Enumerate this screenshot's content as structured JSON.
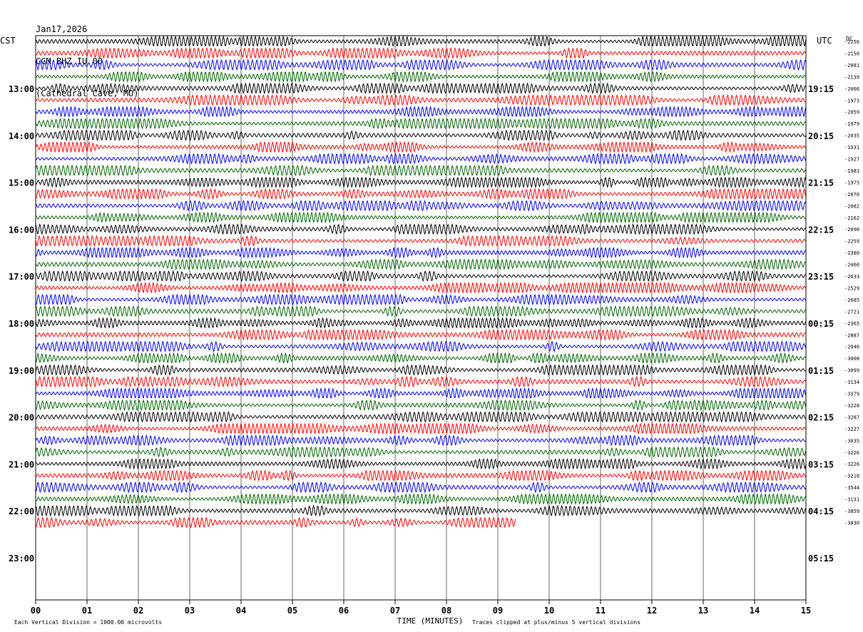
{
  "header": {
    "date": "Jan17,2026",
    "station": "CCM BHZ IU 00",
    "location": "(Cathedral Cave, MO)"
  },
  "left_tz": "CST",
  "right_tz": "UTC",
  "dc_label": "DC",
  "footer": {
    "scale_note": "Each Vertical Division = 1000.00 microvolts",
    "clip_note": "Traces clipped at plus/minus 5 vertical divisions"
  },
  "colors": {
    "trace_cycle": [
      "#000000",
      "#ff0000",
      "#0000ff",
      "#006400"
    ],
    "grid": "#000000"
  },
  "chart_data": {
    "type": "line",
    "xlabel": "TIME (MINUTES)",
    "xlim": [
      0,
      15
    ],
    "x_ticks": [
      "00",
      "01",
      "02",
      "03",
      "04",
      "05",
      "06",
      "07",
      "08",
      "09",
      "10",
      "11",
      "12",
      "13",
      "14",
      "15"
    ],
    "rows_per_hour": 4,
    "row_minutes": 15,
    "left_hour_labels": [
      "13:00",
      "14:00",
      "15:00",
      "16:00",
      "17:00",
      "18:00",
      "19:00",
      "20:00",
      "21:00",
      "22:00",
      "23:00"
    ],
    "right_hour_labels": [
      "19:15",
      "20:15",
      "21:15",
      "22:15",
      "23:15",
      "00:15",
      "01:15",
      "02:15",
      "03:15",
      "04:15",
      "05:15"
    ],
    "dc_offsets": [
      "-2256",
      "-2150",
      "-2081",
      "-2139",
      "-2006",
      "-1973",
      "-2059",
      "-1979",
      "-2035",
      "-1931",
      "-1927",
      "-1983",
      "-1975",
      "-2070",
      "-2082",
      "-2162",
      "-2090",
      "-2259",
      "-2380",
      "-2400",
      "-2633",
      "-2529",
      "-2685",
      "-2721",
      "-2365",
      "-2887",
      "-2946",
      "-3008",
      "-3099",
      "-3134",
      "-3379",
      "-3228",
      "-3287",
      "-3227",
      "-3035",
      "-3226",
      "-3226",
      "-3210",
      "-3544",
      "-3131",
      "-3859",
      "-3030"
    ],
    "trace_count": 42,
    "last_trace_end_minute": 9.35
  }
}
